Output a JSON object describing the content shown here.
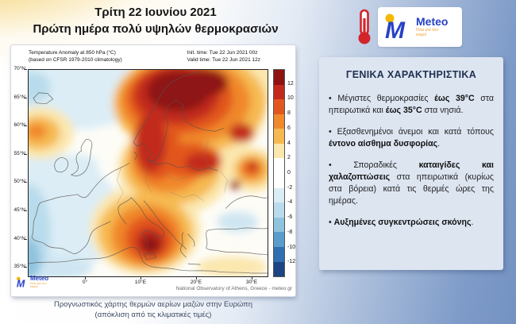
{
  "header": {
    "title_line1": "Τρίτη 22 Ιουνίου 2021",
    "title_line2": "Πρώτη ημέρα πολύ υψηλών θερμοκρασιών"
  },
  "brand": {
    "name": "Meteo",
    "tagline": "Όλα για τον καιρό"
  },
  "map": {
    "header": {
      "title": "Temperature Anomaly at 850 hPa (°C)",
      "subtitle": "(based on CFSR 1979-2010 climatology)",
      "init_time": "Init. time: Tue 22 Jun 2021 00z",
      "valid_time": "Valid time: Tue 22 Jun 2021 12z"
    },
    "lat_labels": [
      "70°N",
      "65°N",
      "60°N",
      "55°N",
      "50°N",
      "45°N",
      "40°N",
      "35°N"
    ],
    "lon_labels": [
      "0°",
      "10°E",
      "20°E",
      "30°E"
    ],
    "colorbar": {
      "labels": [
        "12",
        "10",
        "8",
        "6",
        "4",
        "2",
        "0",
        "-2",
        "-4",
        "-6",
        "-8",
        "-10",
        "-12"
      ],
      "colors": [
        "#8e1212",
        "#c22a1c",
        "#e2571f",
        "#f0882c",
        "#f6b951",
        "#fbe7ae",
        "#ffffff",
        "#ffffff",
        "#daecf5",
        "#b9dcec",
        "#8fc3de",
        "#5b9dca",
        "#2f6fb2",
        "#1c4382"
      ]
    },
    "logo_name": "Meteo",
    "logo_tagline": "Όλα για τον καιρό",
    "attribution": "National Observatory of Athens, Greece - meteo.gr"
  },
  "caption": {
    "line1": "Προγνωστικός χάρτης θερμών αερίων μαζών στην Ευρώπη",
    "line2": "(απόκλιση από τις κλιματικές τιμές)"
  },
  "panel": {
    "title": "ΓΕΝΙΚΑ ΧΑΡΑΚΤΗΡΙΣΤΙΚΑ",
    "bullets": [
      [
        {
          "t": "Μέγιστες θερμοκρασίες "
        },
        {
          "t": "έως 39°C",
          "b": true
        },
        {
          "t": " στα ηπειρωτικά και "
        },
        {
          "t": "έως 35°C",
          "b": true
        },
        {
          "t": " στα νησιά."
        }
      ],
      [
        {
          "t": "Εξασθενημένοι άνεμοι και κατά τόπους "
        },
        {
          "t": "έντονο αίσθημα δυσφορίας",
          "b": true
        },
        {
          "t": "."
        }
      ],
      [
        {
          "t": "Σποραδικές "
        },
        {
          "t": "καταιγίδες και χαλαζοπτώσεις",
          "b": true
        },
        {
          "t": " στα ηπειρωτικά (κυρίως στα βόρεια) κατά τις θερμές ώρες της ημέρας."
        }
      ],
      [
        {
          "t": "Αυξημένες συγκεντρώσεις σκόνης",
          "b": true
        },
        {
          "t": "."
        }
      ]
    ]
  }
}
